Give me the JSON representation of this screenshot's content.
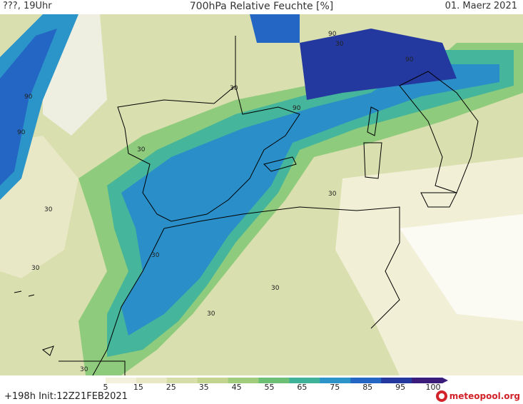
{
  "header": {
    "left": "???, 19Uhr",
    "title": "700hPa Relative Feuchte [%]",
    "date": "01. Maerz 2021"
  },
  "legend": {
    "ticks": [
      "5",
      "15",
      "25",
      "35",
      "45",
      "55",
      "65",
      "75",
      "85",
      "95",
      "100"
    ],
    "colors": [
      "#ffffff",
      "#f3f1dc",
      "#e8e8c4",
      "#d6dda8",
      "#c2d48e",
      "#9fcd7b",
      "#6cbf74",
      "#3fb29a",
      "#2b94c9",
      "#2466c4",
      "#23399f",
      "#3c1c7a"
    ]
  },
  "footer": {
    "init": "+198h Init:12Z21FEB2021",
    "logo_text": "meteopool.org"
  },
  "map": {
    "contour_labels": [
      "90",
      "90",
      "90",
      "90",
      "90",
      "30",
      "30",
      "30",
      "30",
      "30",
      "30",
      "30",
      "30",
      "30",
      "30"
    ]
  }
}
